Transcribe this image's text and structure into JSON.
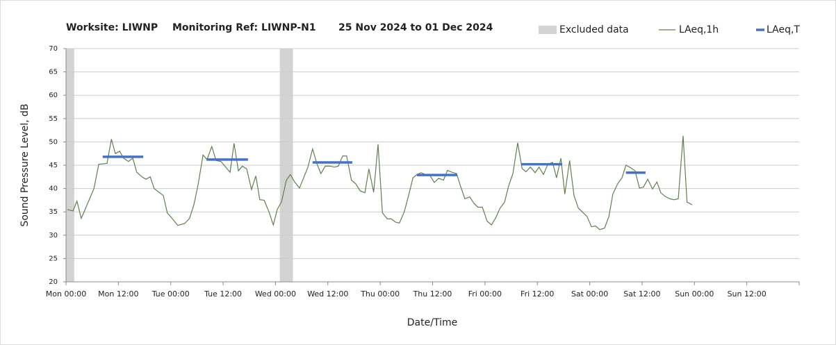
{
  "chart_data": {
    "type": "line",
    "title_parts": [
      "Worksite: LIWNP",
      "Monitoring Ref: LIWNP-N1",
      "25 Nov 2024 to 01 Dec 2024"
    ],
    "x_label": "Date/Time",
    "y_label": "Sound Pressure Level, dB",
    "xlim": [
      0,
      168
    ],
    "xticks": [
      {
        "value": 0,
        "label": "Mon 00:00"
      },
      {
        "value": 12,
        "label": "Mon 12:00"
      },
      {
        "value": 24,
        "label": "Tue 00:00"
      },
      {
        "value": 36,
        "label": "Tue 12:00"
      },
      {
        "value": 48,
        "label": "Wed 00:00"
      },
      {
        "value": 60,
        "label": "Wed 12:00"
      },
      {
        "value": 72,
        "label": "Thu 00:00"
      },
      {
        "value": 84,
        "label": "Thu 12:00"
      },
      {
        "value": 96,
        "label": "Fri 00:00"
      },
      {
        "value": 108,
        "label": "Fri 12:00"
      },
      {
        "value": 120,
        "label": "Sat 00:00"
      },
      {
        "value": 132,
        "label": "Sat 12:00"
      },
      {
        "value": 144,
        "label": "Sun 00:00"
      },
      {
        "value": 156,
        "label": "Sun 12:00"
      }
    ],
    "ylim": [
      20,
      70
    ],
    "yticks": [
      20,
      25,
      30,
      35,
      40,
      45,
      50,
      55,
      60,
      65,
      70
    ],
    "grid": true,
    "excluded": {
      "name": "Excluded data",
      "color": "#d3d3d3",
      "ranges": [
        [
          0,
          1.9
        ],
        [
          49,
          52
        ]
      ]
    },
    "series": [
      {
        "name": "LAeq,1h",
        "color": "#5f7f4f",
        "x": [
          0.3,
          1.6,
          2.5,
          3.5,
          6.4,
          7.5,
          9.4,
          10.4,
          11.3,
          12.3,
          13.2,
          14.3,
          15.3,
          16.2,
          17.4,
          18.3,
          19.3,
          20.2,
          22.3,
          23.2,
          24.4,
          25.6,
          27.2,
          28.3,
          29.3,
          30.3,
          31.4,
          32.3,
          33.4,
          34.4,
          35.5,
          37.6,
          38.5,
          39.5,
          40.4,
          41.4,
          42.5,
          43.5,
          44.4,
          45.4,
          46.5,
          47.5,
          48.4,
          49.4,
          50.5,
          51.4,
          52.4,
          53.5,
          55.4,
          56.5,
          57.5,
          58.4,
          59.4,
          60.5,
          61.5,
          62.4,
          63.4,
          64.3,
          65.4,
          66.4,
          67.4,
          68.5,
          69.4,
          70.5,
          71.5,
          72.5,
          73.6,
          74.5,
          75.5,
          76.4,
          77.5,
          78.5,
          79.5,
          80.4,
          81.4,
          82.5,
          83.4,
          84.4,
          85.4,
          86.5,
          87.4,
          88.4,
          89.5,
          90.4,
          91.4,
          92.5,
          93.5,
          94.4,
          95.4,
          96.5,
          97.5,
          98.4,
          99.4,
          100.5,
          101.4,
          102.4,
          103.5,
          104.5,
          105.4,
          106.4,
          107.5,
          108.4,
          109.4,
          110.4,
          111.5,
          112.4,
          113.4,
          114.3,
          115.4,
          116.4,
          117.4,
          118.3,
          119.4,
          120.4,
          121.3,
          122.3,
          123.4,
          124.4,
          125.3,
          126.4,
          127.4,
          128.3,
          129.3,
          130.4,
          131.4,
          132.3,
          133.3,
          134.4,
          135.4,
          136.3,
          137.3,
          138.4,
          139.3,
          140.3,
          141.4,
          142.3,
          143.5
        ],
        "values": [
          35.5,
          35.2,
          37.3,
          33.6,
          40,
          45.2,
          45.4,
          50.6,
          47.5,
          48,
          46.5,
          45.8,
          46.5,
          43.5,
          42.5,
          42,
          42.5,
          40,
          38.5,
          34.8,
          33.5,
          32.1,
          32.5,
          33.6,
          36.5,
          41,
          47.2,
          46.2,
          49,
          46,
          45.8,
          43.5,
          49.7,
          43.8,
          44.8,
          44.2,
          39.8,
          42.7,
          37.6,
          37.5,
          35,
          32.2,
          35.5,
          37.2,
          41.8,
          43,
          41.4,
          40.1,
          44.5,
          48.5,
          45.3,
          43.2,
          44.8,
          44.8,
          44.6,
          44.8,
          47,
          47,
          41.8,
          41,
          39.5,
          39.1,
          44.2,
          39.2,
          49.5,
          34.8,
          33.5,
          33.5,
          32.8,
          32.6,
          35,
          38.5,
          42.3,
          43,
          43.4,
          42.9,
          42.8,
          41.3,
          42.2,
          41.8,
          43.9,
          43.5,
          43.2,
          40.5,
          37.8,
          38.2,
          36.8,
          36,
          36,
          33,
          32.2,
          33.6,
          35.7,
          37.1,
          40.5,
          43.2,
          49.8,
          44.3,
          43.6,
          44.6,
          43.4,
          44.6,
          43,
          45.2,
          45.6,
          42.3,
          46.5,
          38.8,
          46,
          38.5,
          35.8,
          35,
          34,
          31.8,
          32,
          31.2,
          31.5,
          34,
          38.8,
          41,
          42.3,
          45,
          44.5,
          43.8,
          40.1,
          40.3,
          42,
          39.9,
          41.4,
          39.1,
          38.3,
          37.8,
          37.6,
          37.8,
          51.3,
          37.1,
          36.5
        ]
      },
      {
        "name": "LAeq,T",
        "color": "#4472c4",
        "segments": [
          {
            "x": [
              8.4,
              17.7
            ],
            "value": 46.8
          },
          {
            "x": [
              32.2,
              41.7
            ],
            "value": 46.2
          },
          {
            "x": [
              56.5,
              65.6
            ],
            "value": 45.6
          },
          {
            "x": [
              80.4,
              89.6
            ],
            "value": 42.9
          },
          {
            "x": [
              104.3,
              113.7
            ],
            "value": 45.2
          },
          {
            "x": [
              128.3,
              132.8
            ],
            "value": 43.4
          }
        ]
      }
    ]
  }
}
